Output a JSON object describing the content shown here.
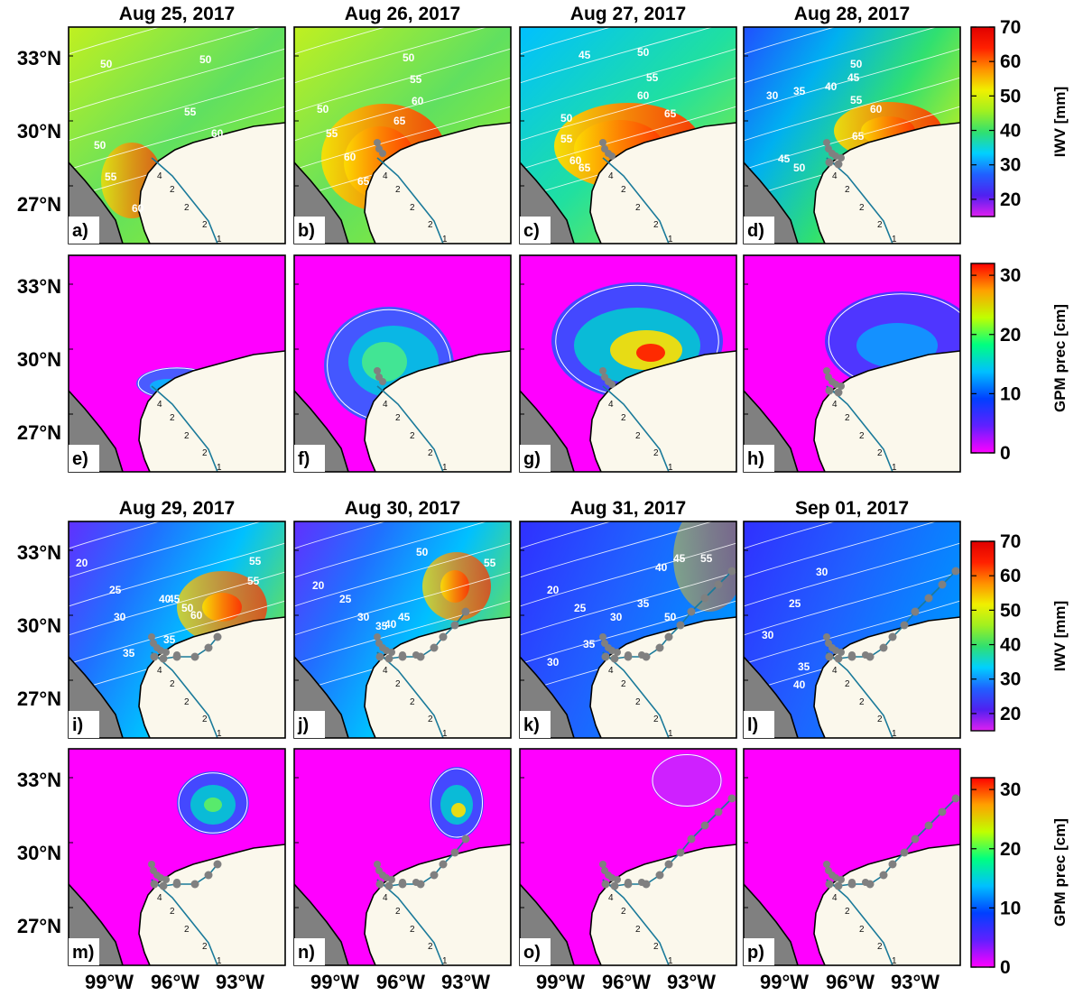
{
  "figure": {
    "rows": [
      {
        "kind": "iwv",
        "panels": [
          {
            "label": "a)",
            "title": "Aug 25, 2017",
            "contours": [
              "50",
              "50",
              "50",
              "55",
              "60",
              "55",
              "60"
            ]
          },
          {
            "label": "b)",
            "title": "Aug 26, 2017",
            "contours": [
              "50",
              "55",
              "60",
              "65",
              "50",
              "55",
              "60",
              "65"
            ]
          },
          {
            "label": "c)",
            "title": "Aug 27, 2017",
            "contours": [
              "45",
              "50",
              "55",
              "60",
              "65",
              "50",
              "55",
              "60",
              "65"
            ]
          },
          {
            "label": "d)",
            "title": "Aug 28, 2017",
            "contours": [
              "30",
              "35",
              "40",
              "45",
              "50",
              "55",
              "60",
              "65",
              "45",
              "50"
            ]
          }
        ]
      },
      {
        "kind": "gpm",
        "panels": [
          {
            "label": "e)",
            "title": ""
          },
          {
            "label": "f)",
            "title": ""
          },
          {
            "label": "g)",
            "title": ""
          },
          {
            "label": "h)",
            "title": ""
          }
        ]
      },
      {
        "kind": "iwv",
        "panels": [
          {
            "label": "i)",
            "title": "Aug 29, 2017",
            "contours": [
              "20",
              "25",
              "30",
              "35",
              "40",
              "45",
              "50",
              "55",
              "55",
              "60",
              "35"
            ]
          },
          {
            "label": "j)",
            "title": "Aug 30, 2017",
            "contours": [
              "20",
              "25",
              "30",
              "35",
              "40",
              "45",
              "50",
              "55"
            ]
          },
          {
            "label": "k)",
            "title": "Aug 31, 2017",
            "contours": [
              "20",
              "25",
              "30",
              "35",
              "40",
              "45",
              "50",
              "55",
              "30",
              "35"
            ]
          },
          {
            "label": "l)",
            "title": "Sep 01, 2017",
            "contours": [
              "25",
              "30",
              "30",
              "35",
              "40"
            ]
          }
        ]
      },
      {
        "kind": "gpm",
        "panels": [
          {
            "label": "m)",
            "title": ""
          },
          {
            "label": "n)",
            "title": ""
          },
          {
            "label": "o)",
            "title": ""
          },
          {
            "label": "p)",
            "title": ""
          }
        ]
      }
    ],
    "lat_ticks": [
      "33°N",
      "30°N",
      "27°N"
    ],
    "lon_ticks": [
      "99°W",
      "96°W",
      "93°W"
    ],
    "colorbars": {
      "iwv": {
        "label": "IWV [mm]",
        "ticks": [
          "70",
          "60",
          "50",
          "40",
          "30",
          "20"
        ],
        "range": [
          15,
          70
        ]
      },
      "gpm": {
        "label": "GPM prec [cm]",
        "ticks": [
          "30",
          "20",
          "10",
          "0"
        ],
        "range": [
          0,
          32
        ]
      }
    },
    "track_labels": [
      "2",
      "2",
      "2",
      "1",
      "4",
      "1"
    ],
    "colors": {
      "land_gray": "#808080",
      "ocean": "#fbf8ec",
      "iwv_scale": [
        "#e020f0",
        "#5020f0",
        "#2060ff",
        "#00d0ff",
        "#30e070",
        "#a0f020",
        "#f0f000",
        "#ff9000",
        "#ff2000",
        "#e00000"
      ],
      "gpm_scale": [
        "#ff00ff",
        "#6020ff",
        "#0040ff",
        "#00c0ff",
        "#00ff80",
        "#c0ff00",
        "#ffa000",
        "#ff0000"
      ]
    }
  }
}
